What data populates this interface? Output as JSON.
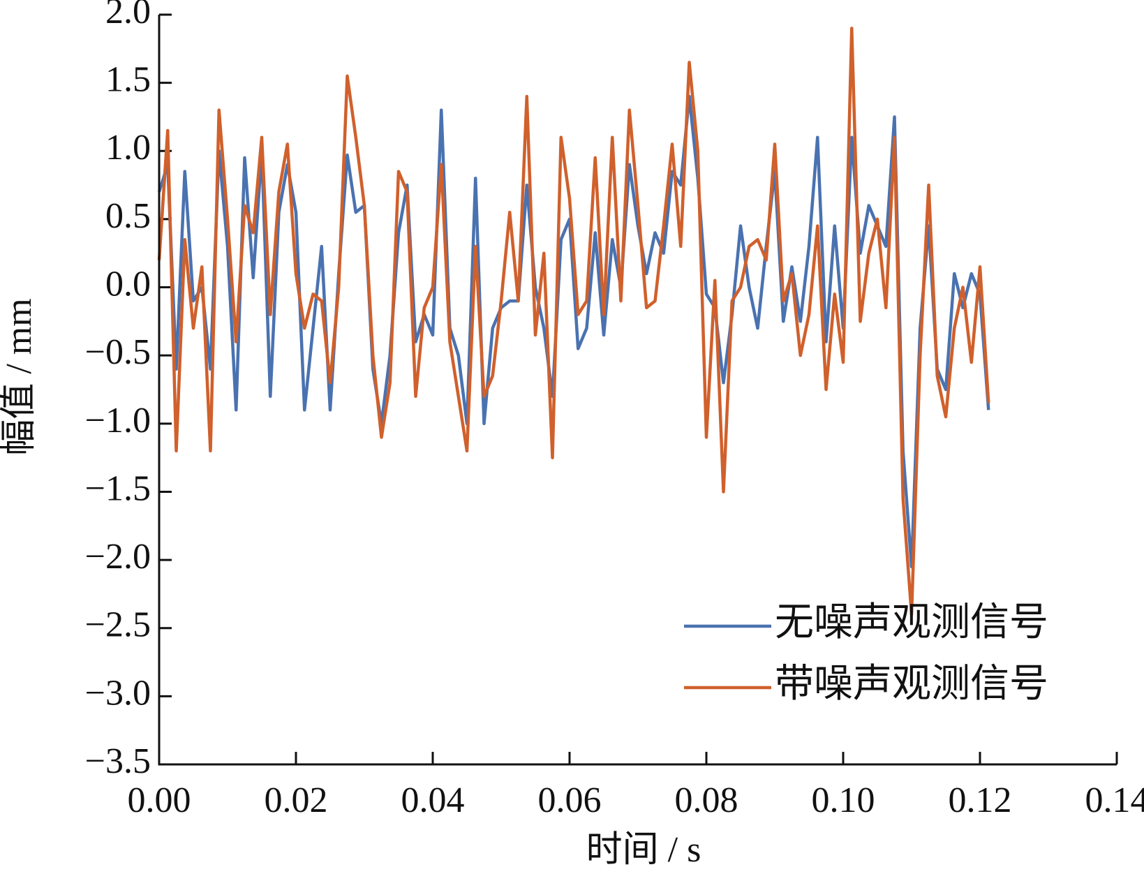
{
  "chart_data": {
    "type": "line",
    "x_label": "时间 / s",
    "y_label": "幅值 / mm",
    "x": [
      0,
      0.00125,
      0.0025,
      0.00375,
      0.005,
      0.00625,
      0.0075,
      0.00875,
      0.01,
      0.01125,
      0.0125,
      0.01375,
      0.015,
      0.01625,
      0.0175,
      0.01875,
      0.02,
      0.02125,
      0.0225,
      0.02375,
      0.025,
      0.02625,
      0.0275,
      0.02875,
      0.03,
      0.03125,
      0.0325,
      0.03375,
      0.035,
      0.03625,
      0.0375,
      0.03875,
      0.04,
      0.04125,
      0.0425,
      0.04375,
      0.045,
      0.04625,
      0.0475,
      0.04875,
      0.05,
      0.05125,
      0.0525,
      0.05375,
      0.055,
      0.05625,
      0.0575,
      0.05875,
      0.06,
      0.06125,
      0.0625,
      0.06375,
      0.065,
      0.06625,
      0.0675,
      0.06875,
      0.07,
      0.07125,
      0.0725,
      0.07375,
      0.075,
      0.07625,
      0.0775,
      0.07875,
      0.08,
      0.08125,
      0.0825,
      0.08375,
      0.085,
      0.08625,
      0.0875,
      0.08875,
      0.09,
      0.09125,
      0.0925,
      0.09375,
      0.095,
      0.09625,
      0.0975,
      0.09875,
      0.1,
      0.10125,
      0.1025,
      0.10375,
      0.105,
      0.10625,
      0.1075,
      0.10875,
      0.11,
      0.11125,
      0.1125,
      0.11375,
      0.115,
      0.11625,
      0.1175,
      0.11875,
      0.12,
      0.12125
    ],
    "series": [
      {
        "name": "无噪声观测信号",
        "color": "#4a72b0",
        "values": [
          0.7,
          0.9,
          -0.6,
          0.85,
          -0.1,
          0.0,
          -0.6,
          1.0,
          0.3,
          -0.9,
          0.95,
          0.07,
          1.0,
          -0.8,
          0.55,
          0.9,
          0.55,
          -0.9,
          -0.3,
          0.3,
          -0.9,
          0.1,
          0.97,
          0.55,
          0.6,
          -0.6,
          -1.0,
          -0.5,
          0.4,
          0.75,
          -0.4,
          -0.2,
          -0.35,
          1.3,
          -0.3,
          -0.5,
          -1.0,
          0.8,
          -1.0,
          -0.3,
          -0.15,
          -0.1,
          -0.1,
          0.75,
          0.0,
          -0.3,
          -0.8,
          0.35,
          0.5,
          -0.45,
          -0.3,
          0.4,
          -0.35,
          0.35,
          0.0,
          0.9,
          0.45,
          0.1,
          0.4,
          0.25,
          0.85,
          0.75,
          1.4,
          0.8,
          -0.05,
          -0.15,
          -0.7,
          -0.2,
          0.45,
          0.0,
          -0.3,
          0.3,
          0.85,
          -0.25,
          0.15,
          -0.25,
          0.3,
          1.1,
          -0.4,
          0.45,
          -0.3,
          1.1,
          0.25,
          0.6,
          0.45,
          0.3,
          1.25,
          -1.2,
          -2.05,
          -0.3,
          0.45,
          -0.6,
          -0.75,
          0.1,
          -0.15,
          0.1,
          -0.05,
          -0.9
        ]
      },
      {
        "name": "带噪声观测信号",
        "color": "#d0602c",
        "values": [
          0.2,
          1.15,
          -1.2,
          0.35,
          -0.3,
          0.15,
          -1.2,
          1.3,
          0.5,
          -0.4,
          0.6,
          0.4,
          1.1,
          -0.2,
          0.7,
          1.05,
          0.1,
          -0.3,
          -0.05,
          -0.1,
          -0.7,
          0.0,
          1.55,
          1.1,
          0.6,
          -0.5,
          -1.1,
          -0.7,
          0.85,
          0.7,
          -0.8,
          -0.15,
          0.0,
          0.9,
          -0.4,
          -0.8,
          -1.2,
          0.3,
          -0.8,
          -0.65,
          -0.1,
          0.55,
          -0.1,
          1.4,
          -0.35,
          0.25,
          -1.25,
          1.1,
          0.65,
          -0.2,
          -0.1,
          0.95,
          -0.2,
          1.1,
          -0.1,
          1.3,
          0.6,
          -0.15,
          -0.1,
          0.45,
          1.05,
          0.3,
          1.65,
          1.0,
          -1.1,
          0.05,
          -1.5,
          -0.1,
          0.0,
          0.3,
          0.35,
          0.2,
          1.05,
          -0.1,
          0.1,
          -0.5,
          -0.2,
          0.45,
          -0.75,
          -0.05,
          -0.55,
          1.9,
          -0.25,
          0.25,
          0.5,
          -0.15,
          1.1,
          -1.55,
          -2.4,
          -0.5,
          0.75,
          -0.65,
          -0.95,
          -0.3,
          0.0,
          -0.55,
          0.15,
          -0.85
        ]
      }
    ],
    "xlim": [
      0,
      0.14
    ],
    "xticks": [
      {
        "value": 0,
        "label": "0.00"
      },
      {
        "value": 0.02,
        "label": "0.02"
      },
      {
        "value": 0.04,
        "label": "0.04"
      },
      {
        "value": 0.06,
        "label": "0.06"
      },
      {
        "value": 0.08,
        "label": "0.08"
      },
      {
        "value": 0.1,
        "label": "0.10"
      },
      {
        "value": 0.12,
        "label": "0.12"
      },
      {
        "value": 0.14,
        "label": "0.14"
      }
    ],
    "ylim": [
      -3.5,
      2.0
    ],
    "yticks": [
      {
        "value": 2,
        "label": "2.0"
      },
      {
        "value": 1.5,
        "label": "1.5"
      },
      {
        "value": 1,
        "label": "1.0"
      },
      {
        "value": 0.5,
        "label": "0.5"
      },
      {
        "value": 0,
        "label": "0.0"
      },
      {
        "value": -0.5,
        "label": "−0.5"
      },
      {
        "value": -1,
        "label": "−1.0"
      },
      {
        "value": -1.5,
        "label": "−1.5"
      },
      {
        "value": -2,
        "label": "−2.0"
      },
      {
        "value": -2.5,
        "label": "−2.5"
      },
      {
        "value": -3,
        "label": "−3.0"
      },
      {
        "value": -3.5,
        "label": "−3.5"
      }
    ],
    "legend": "lower right"
  }
}
